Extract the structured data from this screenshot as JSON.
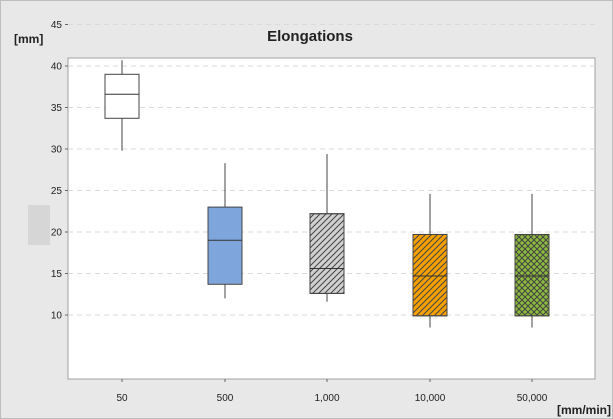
{
  "chart_data": {
    "type": "boxplot",
    "title": "Elongations",
    "ylabel": "[mm]",
    "xlabel": "[mm/min]",
    "ylim": [
      8,
      45
    ],
    "yticks": [
      10,
      15,
      20,
      25,
      30,
      35,
      40,
      45
    ],
    "grid": true,
    "categories": [
      "50",
      "500",
      "1,000",
      "10,000",
      "50,000"
    ],
    "boxes": [
      {
        "category": "50",
        "min": 29.8,
        "q1": 33.7,
        "median": 36.6,
        "q3": 39.0,
        "max": 40.7,
        "fill": "#ffffff",
        "pattern": "none"
      },
      {
        "category": "500",
        "min": 12.0,
        "q1": 13.7,
        "median": 19.0,
        "q3": 23.0,
        "max": 28.3,
        "fill": "#7ea6dc",
        "pattern": "none"
      },
      {
        "category": "1,000",
        "min": 11.6,
        "q1": 12.6,
        "median": 15.6,
        "q3": 22.2,
        "max": 29.4,
        "fill": "#d0d0d0",
        "pattern": "diagonal"
      },
      {
        "category": "10,000",
        "min": 8.5,
        "q1": 9.9,
        "median": 14.7,
        "q3": 19.7,
        "max": 24.6,
        "fill": "#f6a000",
        "pattern": "diagonal"
      },
      {
        "category": "50,000",
        "min": 8.5,
        "q1": 9.9,
        "median": 14.7,
        "q3": 19.7,
        "max": 24.6,
        "fill": "#8cba3c",
        "pattern": "crosshatch"
      }
    ]
  }
}
